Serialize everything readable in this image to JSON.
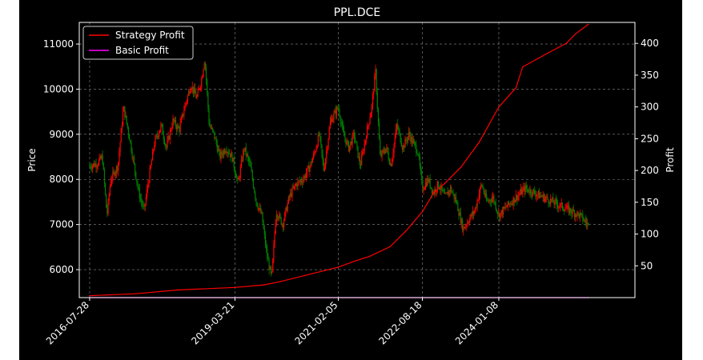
{
  "chart_data": {
    "type": "line",
    "title": "PPL.DCE",
    "ylabel_left": "Price",
    "ylabel_right": "Profit",
    "x_ticks": [
      "2016-07-28",
      "2019-03-21",
      "2021-02-05",
      "2022-08-18",
      "2024-01-08"
    ],
    "y_left_ticks": [
      6000,
      7000,
      8000,
      9000,
      10000,
      11000
    ],
    "y_right_ticks": [
      50,
      100,
      150,
      200,
      250,
      300,
      350,
      400
    ],
    "xlim": [
      "2016-05-20",
      "2026-07-01"
    ],
    "ylim_left": [
      5380,
      11480
    ],
    "ylim_right": [
      0,
      433
    ],
    "grid": true,
    "legend_position": "top-left",
    "legend": [
      {
        "name": "Strategy Profit",
        "color": "#ff0000"
      },
      {
        "name": "Basic Profit",
        "color": "#ff00ff"
      }
    ],
    "candle_colors": {
      "up": "#ff0000",
      "down": "#008000"
    },
    "price_path": [
      [
        "2016-07-28",
        8300
      ],
      [
        "2016-09-15",
        8350
      ],
      [
        "2016-10-20",
        8500
      ],
      [
        "2016-11-20",
        7200
      ],
      [
        "2016-12-15",
        8000
      ],
      [
        "2017-02-01",
        8300
      ],
      [
        "2017-03-10",
        9600
      ],
      [
        "2017-04-15",
        9000
      ],
      [
        "2017-05-20",
        8300
      ],
      [
        "2017-06-20",
        7700
      ],
      [
        "2017-07-25",
        7300
      ],
      [
        "2017-08-20",
        7900
      ],
      [
        "2017-10-01",
        8800
      ],
      [
        "2017-11-15",
        9200
      ],
      [
        "2017-12-20",
        8700
      ],
      [
        "2018-02-01",
        9300
      ],
      [
        "2018-03-15",
        9100
      ],
      [
        "2018-04-20",
        9600
      ],
      [
        "2018-06-01",
        10100
      ],
      [
        "2018-07-10",
        9800
      ],
      [
        "2018-08-10",
        10200
      ],
      [
        "2018-09-01",
        10700
      ],
      [
        "2018-10-01",
        9200
      ],
      [
        "2018-11-01",
        9000
      ],
      [
        "2018-12-10",
        8500
      ],
      [
        "2019-01-20",
        8700
      ],
      [
        "2019-03-01",
        8500
      ],
      [
        "2019-04-10",
        7900
      ],
      [
        "2019-05-20",
        8700
      ],
      [
        "2019-06-30",
        8300
      ],
      [
        "2019-08-10",
        7500
      ],
      [
        "2019-09-15",
        7200
      ],
      [
        "2019-10-20",
        6300
      ],
      [
        "2019-11-20",
        5800
      ],
      [
        "2019-12-20",
        7300
      ],
      [
        "2020-02-01",
        7000
      ],
      [
        "2020-03-15",
        7600
      ],
      [
        "2020-05-01",
        7900
      ],
      [
        "2020-06-15",
        8000
      ],
      [
        "2020-08-01",
        8300
      ],
      [
        "2020-09-01",
        8600
      ],
      [
        "2020-10-01",
        9000
      ],
      [
        "2020-11-01",
        8200
      ],
      [
        "2020-12-15",
        9300
      ],
      [
        "2021-02-05",
        9600
      ],
      [
        "2021-03-10",
        9000
      ],
      [
        "2021-04-15",
        8700
      ],
      [
        "2021-05-20",
        9000
      ],
      [
        "2021-07-01",
        8300
      ],
      [
        "2021-08-10",
        9000
      ],
      [
        "2021-09-15",
        9600
      ],
      [
        "2021-10-10",
        10400
      ],
      [
        "2021-11-10",
        8500
      ],
      [
        "2021-12-20",
        8700
      ],
      [
        "2022-01-20",
        8300
      ],
      [
        "2022-03-01",
        9200
      ],
      [
        "2022-04-10",
        8700
      ],
      [
        "2022-05-20",
        9000
      ],
      [
        "2022-06-20",
        8800
      ],
      [
        "2022-07-20",
        8600
      ],
      [
        "2022-08-18",
        7800
      ],
      [
        "2022-09-25",
        8000
      ],
      [
        "2022-10-30",
        7700
      ],
      [
        "2022-12-01",
        7900
      ],
      [
        "2023-01-15",
        7600
      ],
      [
        "2023-02-20",
        7800
      ],
      [
        "2023-04-01",
        7500
      ],
      [
        "2023-05-15",
        6900
      ],
      [
        "2023-06-20",
        7100
      ],
      [
        "2023-08-01",
        7300
      ],
      [
        "2023-09-15",
        7900
      ],
      [
        "2023-10-20",
        7500
      ],
      [
        "2023-12-01",
        7600
      ],
      [
        "2024-01-08",
        7200
      ],
      [
        "2024-03-01",
        7400
      ],
      [
        "2024-05-01",
        7600
      ],
      [
        "2024-07-01",
        7800
      ],
      [
        "2024-09-01",
        7700
      ],
      [
        "2024-11-01",
        7600
      ],
      [
        "2025-01-01",
        7500
      ],
      [
        "2025-03-01",
        7400
      ],
      [
        "2025-05-01",
        7300
      ],
      [
        "2025-07-01",
        7200
      ],
      [
        "2025-08-25",
        6980
      ]
    ],
    "series": [
      {
        "name": "Strategy Profit",
        "color": "#ff0000",
        "points": [
          [
            "2016-07-28",
            3
          ],
          [
            "2017-06-01",
            6
          ],
          [
            "2018-03-01",
            12
          ],
          [
            "2019-03-21",
            16
          ],
          [
            "2019-10-01",
            20
          ],
          [
            "2020-01-15",
            25
          ],
          [
            "2020-07-01",
            35
          ],
          [
            "2021-02-05",
            48
          ],
          [
            "2021-06-01",
            58
          ],
          [
            "2021-09-01",
            65
          ],
          [
            "2022-01-15",
            80
          ],
          [
            "2022-05-01",
            105
          ],
          [
            "2022-08-18",
            135
          ],
          [
            "2022-11-01",
            165
          ],
          [
            "2023-01-15",
            180
          ],
          [
            "2023-05-01",
            205
          ],
          [
            "2023-09-01",
            245
          ],
          [
            "2024-01-08",
            300
          ],
          [
            "2024-05-01",
            330
          ],
          [
            "2024-06-15",
            363
          ],
          [
            "2024-12-01",
            385
          ],
          [
            "2025-04-01",
            400
          ],
          [
            "2025-06-01",
            415
          ],
          [
            "2025-08-25",
            430
          ]
        ]
      },
      {
        "name": "Basic Profit",
        "color": "#ff00ff",
        "points": [
          [
            "2016-07-28",
            0
          ],
          [
            "2025-08-25",
            0
          ]
        ]
      }
    ]
  }
}
